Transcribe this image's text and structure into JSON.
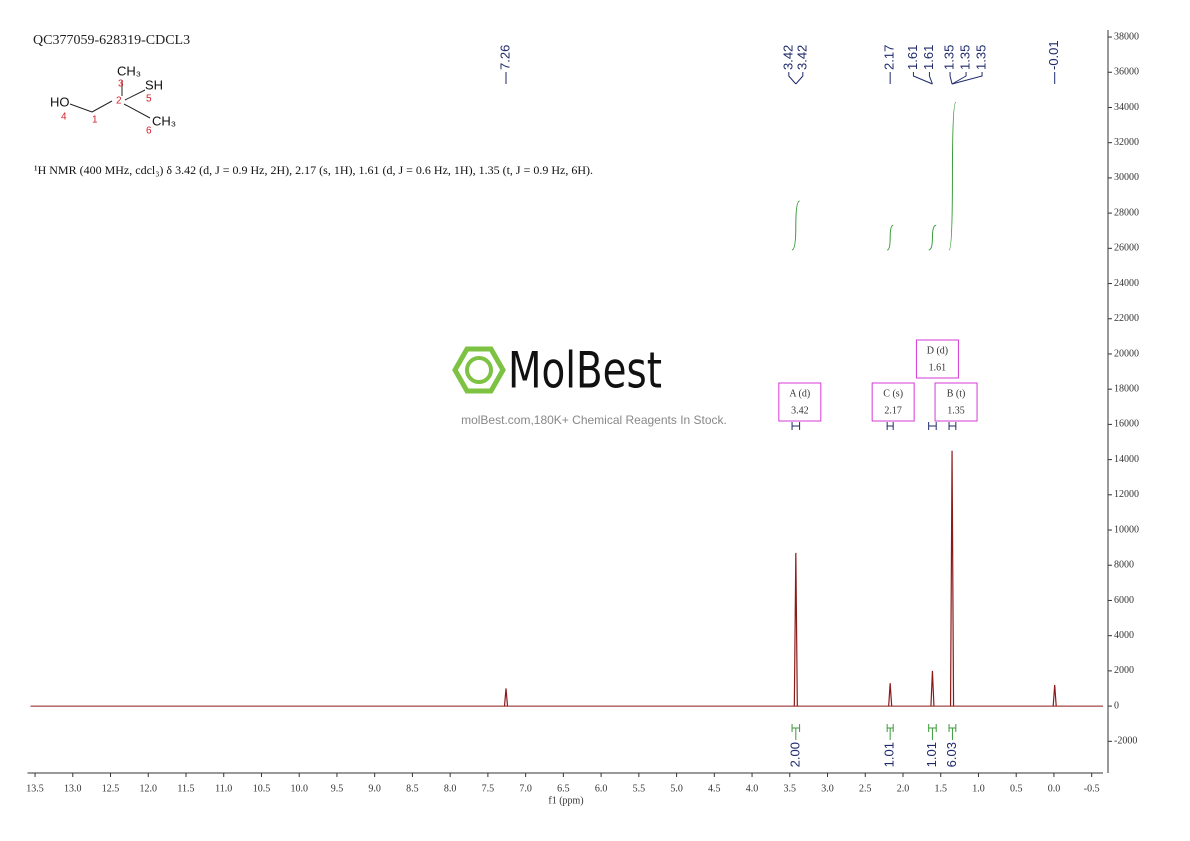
{
  "chart_data": {
    "type": "nmr",
    "title": "QC377059-628319-CDCL3",
    "description": "¹H NMR (400 MHz, cdcl₃) δ 3.42 (d, J = 0.9 Hz, 2H), 2.17 (s, 1H), 1.61 (d, J = 0.6 Hz, 1H), 1.35 (t, J = 0.9 Hz, 6H).",
    "structure": {
      "labels": [
        "HO",
        "CH₃",
        "SH",
        "CH₃",
        "1",
        "2",
        "3",
        "4",
        "5",
        "6"
      ]
    },
    "watermark": {
      "brand": "MolBest",
      "tagline": "molBest.com,180K+ Chemical Reagents In Stock."
    },
    "x_label": "f1 (ppm)",
    "color": "#8b1a1a",
    "peaks": {
      "ppm": [
        7.26,
        3.42,
        2.17,
        1.61,
        1.35,
        -0.01
      ],
      "values": [
        1000,
        8700,
        1300,
        2000,
        14500,
        1200
      ]
    },
    "peak_labels": [
      7.26,
      3.42,
      3.42,
      2.17,
      1.61,
      1.61,
      1.35,
      1.35,
      1.35,
      -0.01
    ],
    "multiplets": [
      {
        "name": "A (d)",
        "shift": 3.42
      },
      {
        "name": "C (s)",
        "shift": 2.17
      },
      {
        "name": "D (d)",
        "shift": 1.61
      },
      {
        "name": "B (t)",
        "shift": 1.35
      }
    ],
    "integrals": [
      {
        "range": [
          3.47,
          3.37
        ],
        "value": {
          "value": 2,
          "label": "2.00"
        }
      },
      {
        "range": [
          2.21,
          2.13
        ],
        "value": 1.01
      },
      {
        "range": [
          1.66,
          1.56
        ],
        "value": 1.01
      },
      {
        "range": [
          1.39,
          1.3
        ],
        "value": 6.03
      }
    ],
    "xlim": [
      13.6,
      -0.65
    ],
    "xticks": [
      13.5,
      {
        "value": 13,
        "label": "13.0"
      },
      12.5,
      {
        "value": 12,
        "label": "12.0"
      },
      11.5,
      {
        "value": 11,
        "label": "11.0"
      },
      10.5,
      {
        "value": 10,
        "label": "10.0"
      },
      9.5,
      {
        "value": 9,
        "label": "9.0"
      },
      8.5,
      {
        "value": 8,
        "label": "8.0"
      },
      7.5,
      {
        "value": 7,
        "label": "7.0"
      },
      6.5,
      {
        "value": 6,
        "label": "6.0"
      },
      5.5,
      {
        "value": 5,
        "label": "5.0"
      },
      4.5,
      {
        "value": 4,
        "label": "4.0"
      },
      3.5,
      {
        "value": 3,
        "label": "3.0"
      },
      2.5,
      {
        "value": 2,
        "label": "2.0"
      },
      1.5,
      {
        "value": 1,
        "label": "1.0"
      },
      0.5,
      {
        "value": 0,
        "label": "0.0"
      },
      -0.5
    ],
    "ylim": [
      -3800,
      38400
    ],
    "yticks": [
      -2000,
      0,
      2000,
      4000,
      6000,
      8000,
      10000,
      12000,
      14000,
      16000,
      18000,
      20000,
      22000,
      24000,
      26000,
      28000,
      30000,
      32000,
      34000,
      36000,
      38000
    ]
  }
}
